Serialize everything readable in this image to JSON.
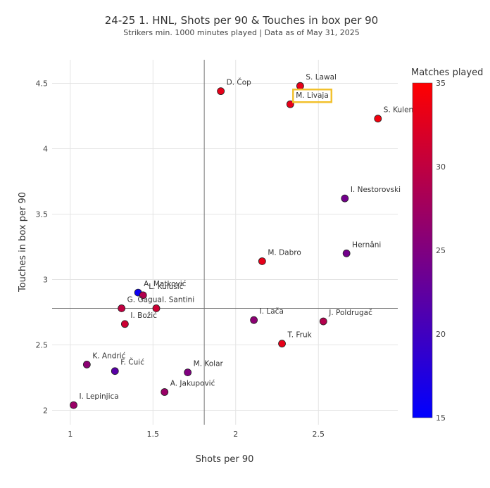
{
  "chart_data": {
    "type": "scatter",
    "title": "24-25 1. HNL, Shots per 90 & Touches in box per 90",
    "subtitle": "Strikers min. 1000 minutes played | Data as of May 31, 2025",
    "xlabel": "Shots per 90",
    "ylabel": "Touches in box per 90",
    "xlim": [
      0.89,
      2.98
    ],
    "ylim": [
      1.89,
      4.68
    ],
    "x_ticks": [
      1,
      1.5,
      2,
      2.5
    ],
    "x_tick_labels": [
      "1",
      "1.5",
      "2",
      "2.5"
    ],
    "y_ticks": [
      2,
      2.5,
      3,
      3.5,
      4,
      4.5
    ],
    "y_tick_labels": [
      "2",
      "2.5",
      "3",
      "3.5",
      "4",
      "4.5"
    ],
    "grid": true,
    "reference_lines": {
      "x": 1.81,
      "y": 2.78
    },
    "colorbar": {
      "title": "Matches played",
      "min": 15,
      "max": 35,
      "ticks": [
        15,
        20,
        25,
        30,
        35
      ],
      "colorscale": [
        "#0000ff",
        "#ff0000"
      ]
    },
    "highlighted": "M. Livaja",
    "highlight_color": "#f2c12e",
    "points": [
      {
        "name": "S. Lawal",
        "x": 2.39,
        "y": 4.48,
        "matches": 33
      },
      {
        "name": "D. Čop",
        "x": 1.91,
        "y": 4.44,
        "matches": 33
      },
      {
        "name": "M. Livaja",
        "x": 2.33,
        "y": 4.34,
        "matches": 33
      },
      {
        "name": "S. Kulenović",
        "x": 2.86,
        "y": 4.23,
        "matches": 34
      },
      {
        "name": "I. Nestorovski",
        "x": 2.66,
        "y": 3.62,
        "matches": 24
      },
      {
        "name": "Hernâni",
        "x": 2.67,
        "y": 3.2,
        "matches": 24
      },
      {
        "name": "M. Dabro",
        "x": 2.16,
        "y": 3.14,
        "matches": 33
      },
      {
        "name": "A. Matković",
        "x": 1.41,
        "y": 2.9,
        "matches": 16
      },
      {
        "name": "L. Kulušić",
        "x": 1.44,
        "y": 2.88,
        "matches": 29
      },
      {
        "name": "G. Gagua",
        "x": 1.31,
        "y": 2.78,
        "matches": 30
      },
      {
        "name": "I. Santini",
        "x": 1.52,
        "y": 2.78,
        "matches": 31
      },
      {
        "name": "I. Lača",
        "x": 2.11,
        "y": 2.69,
        "matches": 26
      },
      {
        "name": "J. Poldrugač",
        "x": 2.53,
        "y": 2.68,
        "matches": 29
      },
      {
        "name": "I. Božić",
        "x": 1.33,
        "y": 2.66,
        "matches": 31
      },
      {
        "name": "T. Fruk",
        "x": 2.28,
        "y": 2.51,
        "matches": 33
      },
      {
        "name": "K. Andrić",
        "x": 1.1,
        "y": 2.35,
        "matches": 26
      },
      {
        "name": "F. Čuić",
        "x": 1.27,
        "y": 2.3,
        "matches": 22
      },
      {
        "name": "M. Kolar",
        "x": 1.71,
        "y": 2.29,
        "matches": 25
      },
      {
        "name": "A. Jakupović",
        "x": 1.57,
        "y": 2.14,
        "matches": 27
      },
      {
        "name": "I. Lepinjica",
        "x": 1.02,
        "y": 2.04,
        "matches": 27
      }
    ]
  }
}
